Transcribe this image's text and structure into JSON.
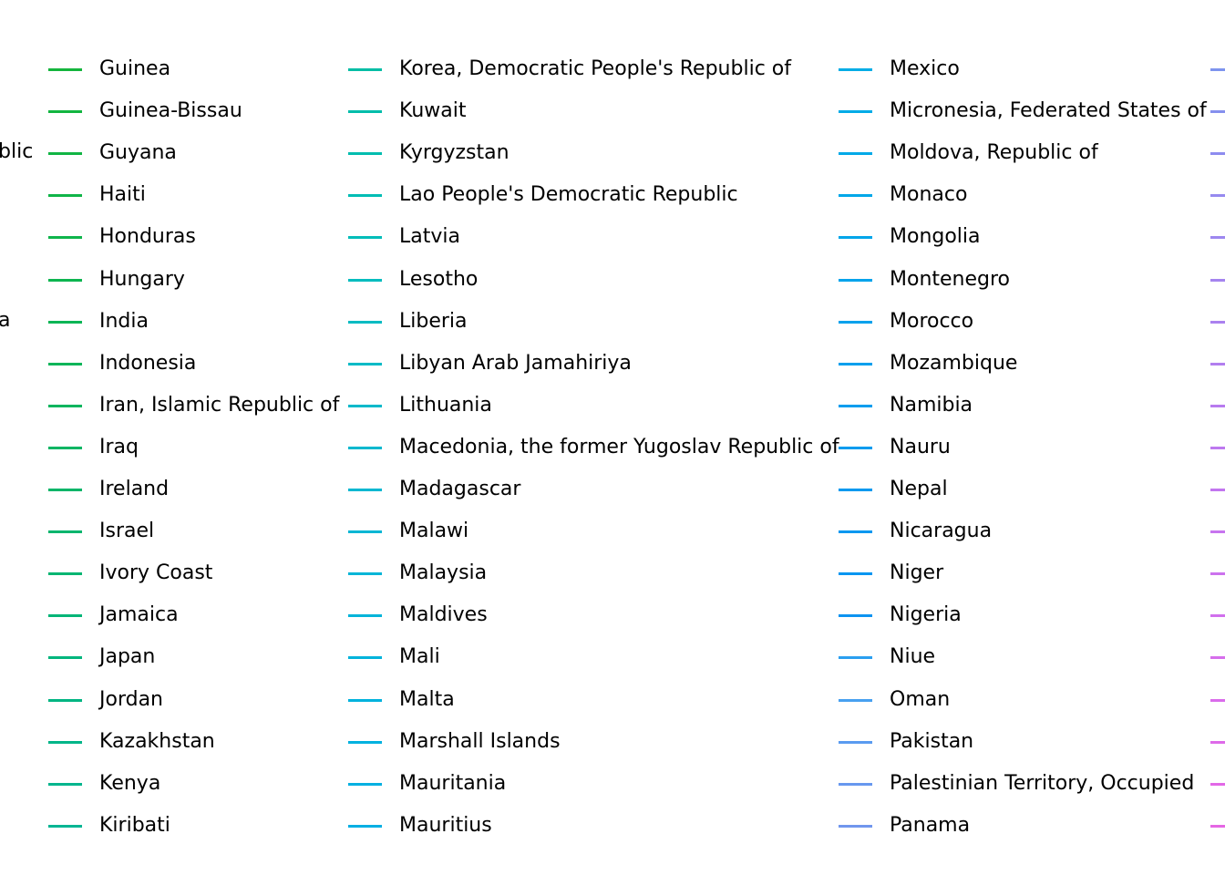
{
  "chart_data": {
    "type": "line",
    "legend_placement": "right",
    "partial_labels_left": [
      "blic",
      "a"
    ],
    "legend_columns": [
      {
        "entries": [
          {
            "label": "Guinea",
            "color": "#14b53d"
          },
          {
            "label": "Guinea-Bissau",
            "color": "#12b540"
          },
          {
            "label": "Guyana",
            "color": "#11b544"
          },
          {
            "label": "Haiti",
            "color": "#10b548"
          },
          {
            "label": "Honduras",
            "color": "#0fb54c"
          },
          {
            "label": "Hungary",
            "color": "#0db550"
          },
          {
            "label": "India",
            "color": "#0bb555"
          },
          {
            "label": "Indonesia",
            "color": "#09b559"
          },
          {
            "label": "Iran, Islamic Republic of",
            "color": "#07b55e"
          },
          {
            "label": "Iraq",
            "color": "#05b563"
          },
          {
            "label": "Ireland",
            "color": "#03b568"
          },
          {
            "label": "Israel",
            "color": "#02b56d"
          },
          {
            "label": "Ivory Coast",
            "color": "#01b572"
          },
          {
            "label": "Jamaica",
            "color": "#00b577"
          },
          {
            "label": "Japan",
            "color": "#00b57d"
          },
          {
            "label": "Jordan",
            "color": "#00b582"
          },
          {
            "label": "Kazakhstan",
            "color": "#00b588"
          },
          {
            "label": "Kenya",
            "color": "#00b58d"
          },
          {
            "label": "Kiribati",
            "color": "#00b593"
          }
        ]
      },
      {
        "entries": [
          {
            "label": "Korea, Democratic People's Republic of",
            "color": "#00bda5"
          },
          {
            "label": "Kuwait",
            "color": "#00bdaa"
          },
          {
            "label": "Kyrgyzstan",
            "color": "#00bdaf"
          },
          {
            "label": "Lao People's Democratic Republic",
            "color": "#00bdb4"
          },
          {
            "label": "Latvia",
            "color": "#00bdb9"
          },
          {
            "label": "Lesotho",
            "color": "#00bcbe"
          },
          {
            "label": "Liberia",
            "color": "#00bbc2"
          },
          {
            "label": "Libyan Arab Jamahiriya",
            "color": "#00bac6"
          },
          {
            "label": "Lithuania",
            "color": "#00b9ca"
          },
          {
            "label": "Macedonia, the former Yugoslav Republic of",
            "color": "#00b8ce"
          },
          {
            "label": "Madagascar",
            "color": "#00b7d1"
          },
          {
            "label": "Malawi",
            "color": "#00b6d4"
          },
          {
            "label": "Malaysia",
            "color": "#00b5d7"
          },
          {
            "label": "Maldives",
            "color": "#00b4d9"
          },
          {
            "label": "Mali",
            "color": "#00b3db"
          },
          {
            "label": "Malta",
            "color": "#00b2dd"
          },
          {
            "label": "Marshall Islands",
            "color": "#00b1df"
          },
          {
            "label": "Mauritania",
            "color": "#00b0e1"
          },
          {
            "label": "Mauritius",
            "color": "#00afe3"
          }
        ]
      },
      {
        "entries": [
          {
            "label": "Mexico",
            "color": "#00ade6"
          },
          {
            "label": "Micronesia, Federated States of",
            "color": "#00abe7"
          },
          {
            "label": "Moldova, Republic of",
            "color": "#00a9e8"
          },
          {
            "label": "Monaco",
            "color": "#00a7e9"
          },
          {
            "label": "Mongolia",
            "color": "#00a5ea"
          },
          {
            "label": "Montenegro",
            "color": "#00a3eb"
          },
          {
            "label": "Morocco",
            "color": "#00a1ec"
          },
          {
            "label": "Mozambique",
            "color": "#009fed"
          },
          {
            "label": "Namibia",
            "color": "#009dee"
          },
          {
            "label": "Nauru",
            "color": "#009bee"
          },
          {
            "label": "Nepal",
            "color": "#0099ef"
          },
          {
            "label": "Nicaragua",
            "color": "#0097f0"
          },
          {
            "label": "Niger",
            "color": "#0095f1"
          },
          {
            "label": "Nigeria",
            "color": "#0c93f1"
          },
          {
            "label": "Niue",
            "color": "#2a9ff0"
          },
          {
            "label": "Oman",
            "color": "#47a0f0"
          },
          {
            "label": "Pakistan",
            "color": "#5a9bf0"
          },
          {
            "label": "Palestinian Territory, Occupied",
            "color": "#6798ef"
          },
          {
            "label": "Panama",
            "color": "#7196ee"
          }
        ]
      },
      {
        "entries": [
          {
            "label": "",
            "color": "#7e94ee"
          },
          {
            "label": "",
            "color": "#8590ee"
          },
          {
            "label": "",
            "color": "#8e8cef"
          },
          {
            "label": "",
            "color": "#968aef"
          },
          {
            "label": "",
            "color": "#9d87ef"
          },
          {
            "label": "",
            "color": "#a584ef"
          },
          {
            "label": "",
            "color": "#ab81ef"
          },
          {
            "label": "",
            "color": "#b27eef"
          },
          {
            "label": "",
            "color": "#b87bef"
          },
          {
            "label": "",
            "color": "#bd79ef"
          },
          {
            "label": "",
            "color": "#c276ef"
          },
          {
            "label": "",
            "color": "#c774ef"
          },
          {
            "label": "",
            "color": "#cc72ee"
          },
          {
            "label": "",
            "color": "#d170ed"
          },
          {
            "label": "",
            "color": "#d66eec"
          },
          {
            "label": "",
            "color": "#da6ceb"
          },
          {
            "label": "",
            "color": "#de6ae9"
          },
          {
            "label": "",
            "color": "#e268e7"
          },
          {
            "label": "",
            "color": "#e567e4"
          }
        ]
      }
    ]
  }
}
